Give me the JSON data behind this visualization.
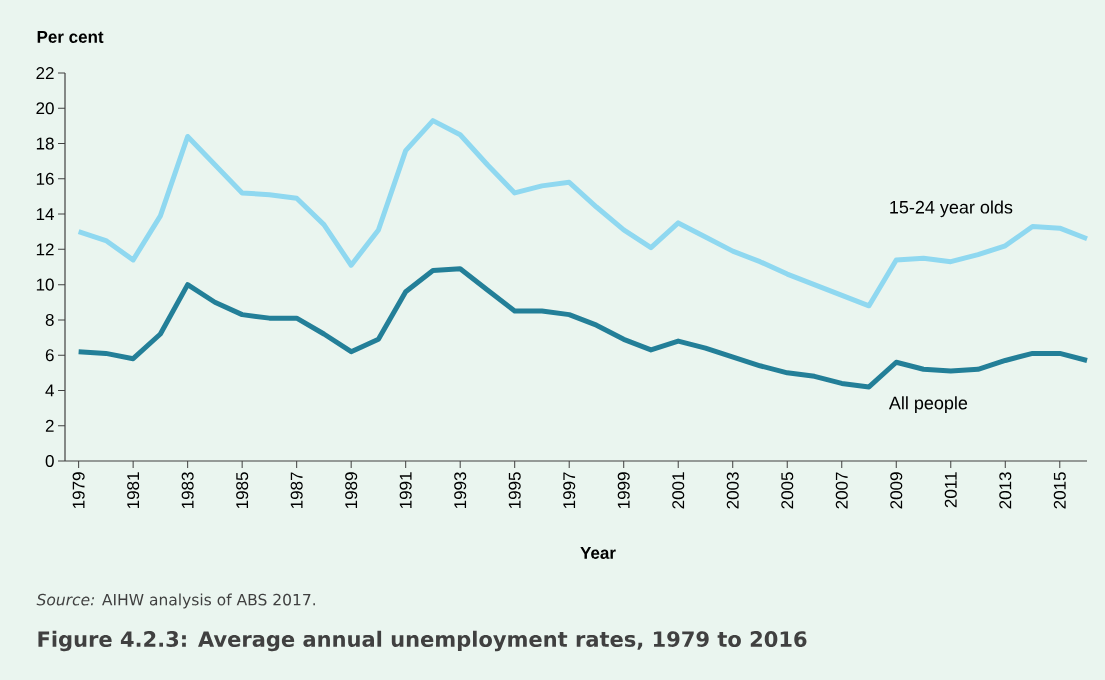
{
  "chart_data": {
    "type": "line",
    "title": "Figure 4.2.3: Average annual unemployment rates, 1979 to 2016",
    "annotations": [
      "*Source:* AIHW analysis of ABS 2017."
    ],
    "xlabel": "Year",
    "ylabel": "Per cent",
    "x": [
      1979,
      1980,
      1981,
      1982,
      1983,
      1984,
      1985,
      1986,
      1987,
      1988,
      1989,
      1990,
      1991,
      1992,
      1993,
      1994,
      1995,
      1996,
      1997,
      1998,
      1999,
      2000,
      2001,
      2002,
      2003,
      2004,
      2005,
      2006,
      2007,
      2008,
      2009,
      2010,
      2011,
      2012,
      2013,
      2014,
      2015,
      2016
    ],
    "series": [
      {
        "name": "15-24 year olds",
        "color": "#8fd8f0",
        "values": [
          13.0,
          12.5,
          11.4,
          13.9,
          18.4,
          16.8,
          15.2,
          15.1,
          14.9,
          13.4,
          11.1,
          13.1,
          17.6,
          19.3,
          18.5,
          16.8,
          15.2,
          15.6,
          15.8,
          14.4,
          13.1,
          12.1,
          13.5,
          12.7,
          11.9,
          11.3,
          10.6,
          10.0,
          9.4,
          8.8,
          11.4,
          11.5,
          11.3,
          11.7,
          12.2,
          13.3,
          13.2,
          12.6
        ]
      },
      {
        "name": "All people",
        "color": "#237f98",
        "values": [
          6.2,
          6.1,
          5.8,
          7.2,
          10.0,
          9.0,
          8.3,
          8.1,
          8.1,
          7.2,
          6.2,
          6.9,
          9.6,
          10.8,
          10.9,
          9.7,
          8.5,
          8.5,
          8.3,
          7.7,
          6.9,
          6.3,
          6.8,
          6.4,
          5.9,
          5.4,
          5.0,
          4.8,
          4.4,
          4.2,
          5.6,
          5.2,
          5.1,
          5.2,
          5.7,
          6.1,
          6.1,
          5.7
        ]
      }
    ],
    "xlim": [
      1978.5,
      2016
    ],
    "xticks": [
      1979,
      1981,
      1983,
      1985,
      1987,
      1989,
      1991,
      1993,
      1995,
      1997,
      1999,
      2001,
      2003,
      2005,
      2007,
      2009,
      2011,
      2013,
      2015
    ],
    "ylim": [
      0,
      22
    ],
    "yticks": [
      0,
      2,
      4,
      6,
      8,
      10,
      12,
      14,
      16,
      18,
      20,
      22
    ],
    "grid": false
  }
}
